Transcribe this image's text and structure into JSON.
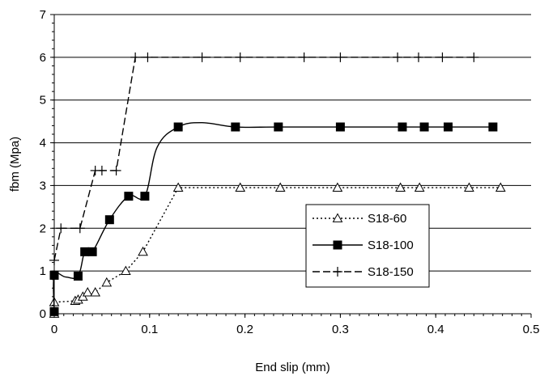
{
  "chart_data": {
    "type": "line",
    "title": "",
    "xlabel": "End slip (mm)",
    "ylabel": "fbm (Mpa)",
    "xlim": [
      0,
      0.5
    ],
    "ylim": [
      0,
      7
    ],
    "xticks": [
      "0",
      "0.1",
      "0.2",
      "0.3",
      "0.4",
      "0.5"
    ],
    "yticks": [
      "0",
      "1",
      "2",
      "3",
      "4",
      "5",
      "6",
      "7"
    ],
    "grid": "horizontal",
    "legend_position": "center-right",
    "series": [
      {
        "name": "S18-60",
        "line_style": "dotted",
        "marker": "open-triangle",
        "color": "#000000",
        "x": [
          0,
          0,
          0.022,
          0.025,
          0.03,
          0.035,
          0.043,
          0.055,
          0.075,
          0.093,
          0.13,
          0.195,
          0.237,
          0.297,
          0.363,
          0.383,
          0.435,
          0.468
        ],
        "y": [
          0,
          0.27,
          0.3,
          0.33,
          0.4,
          0.5,
          0.5,
          0.73,
          1.0,
          1.45,
          2.95,
          2.95,
          2.95,
          2.95,
          2.95,
          2.95,
          2.95,
          2.95
        ]
      },
      {
        "name": "S18-100",
        "line_style": "solid",
        "marker": "filled-square",
        "color": "#000000",
        "x": [
          0,
          0,
          0.025,
          0.032,
          0.04,
          0.058,
          0.078,
          0.095,
          0.13,
          0.19,
          0.235,
          0.3,
          0.365,
          0.388,
          0.413,
          0.46
        ],
        "y": [
          0.05,
          0.9,
          0.88,
          1.45,
          1.45,
          2.2,
          2.75,
          2.75,
          4.37,
          4.37,
          4.37,
          4.37,
          4.37,
          4.37,
          4.37,
          4.37
        ],
        "curve": [
          [
            0,
            0.05
          ],
          [
            0,
            0.9
          ],
          [
            0.012,
            0.86
          ],
          [
            0.025,
            0.88
          ],
          [
            0.032,
            1.45
          ],
          [
            0.04,
            1.45
          ],
          [
            0.058,
            2.2
          ],
          [
            0.078,
            2.75
          ],
          [
            0.095,
            2.75
          ],
          [
            0.108,
            3.9
          ],
          [
            0.13,
            4.37
          ],
          [
            0.155,
            4.47
          ],
          [
            0.19,
            4.37
          ],
          [
            0.235,
            4.37
          ],
          [
            0.3,
            4.37
          ],
          [
            0.365,
            4.37
          ],
          [
            0.388,
            4.37
          ],
          [
            0.413,
            4.37
          ],
          [
            0.46,
            4.37
          ]
        ]
      },
      {
        "name": "S18-150",
        "line_style": "dashed",
        "marker": "plus",
        "color": "#000000",
        "x": [
          0,
          0.007,
          0.027,
          0.043,
          0.05,
          0.065,
          0.085,
          0.098,
          0.155,
          0.195,
          0.262,
          0.3,
          0.36,
          0.382,
          0.407,
          0.44
        ],
        "y": [
          1.25,
          2.0,
          2.0,
          3.35,
          3.35,
          3.35,
          6.0,
          6.0,
          6.0,
          6.0,
          6.0,
          6.0,
          6.0,
          6.0,
          6.0,
          6.0
        ]
      }
    ]
  }
}
